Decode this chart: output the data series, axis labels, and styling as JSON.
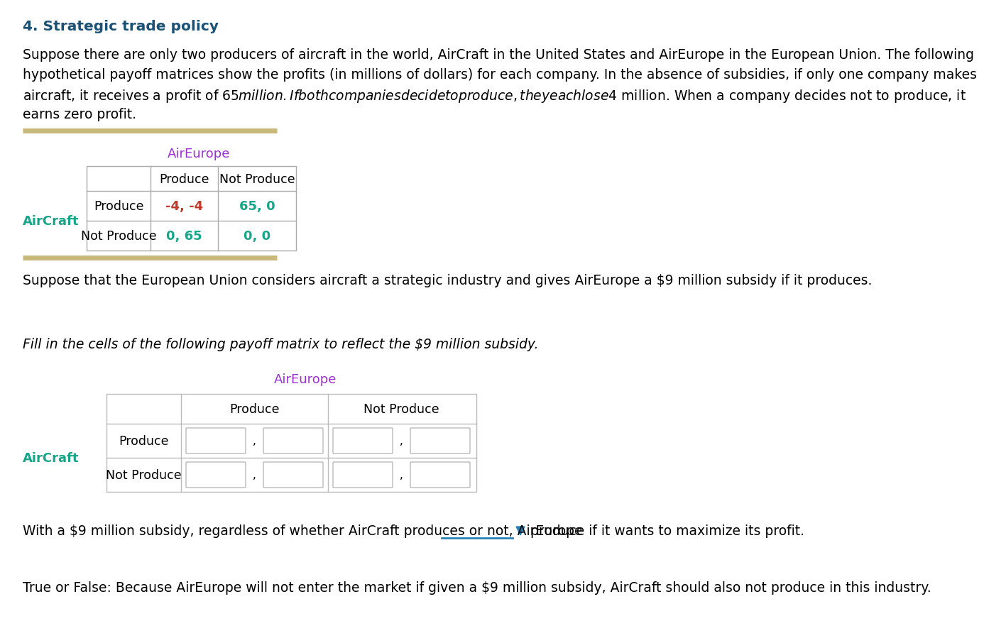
{
  "title": "4. Strategic trade policy",
  "title_color": "#1a5276",
  "para1_lines": [
    "Suppose there are only two producers of aircraft in the world, AirCraft in the United States and AirEurope in the European Union. The following",
    "hypothetical payoff matrices show the profits (in millions of dollars) for each company. In the absence of subsidies, if only one company makes",
    "aircraft, it receives a profit of $65 million. If both companies decide to produce, they each lose $4 million. When a company decides not to produce, it",
    "earns zero profit."
  ],
  "table1_aireurope_label": "AirEurope",
  "table1_aireurope_color": "#9b30d0",
  "table1_aircraft_label": "AirCraft",
  "table1_aircraft_color": "#17a589",
  "table1_col_headers": [
    "Produce",
    "Not Produce"
  ],
  "table1_row_headers": [
    "Produce",
    "Not Produce"
  ],
  "table1_cells": [
    [
      "-4, -4",
      "65, 0"
    ],
    [
      "0, 65",
      "0, 0"
    ]
  ],
  "table1_cell_colors": [
    [
      "#c0392b",
      "#17a589"
    ],
    [
      "#17a589",
      "#17a589"
    ]
  ],
  "separator_color": "#c8b87a",
  "para2": "Suppose that the European Union considers aircraft a strategic industry and gives AirEurope a $9 million subsidy if it produces.",
  "para3_italic": "Fill in the cells of the following payoff matrix to reflect the $9 million subsidy.",
  "table2_aireurope_label": "AirEurope",
  "table2_aireurope_color": "#9b30d0",
  "table2_aircraft_label": "AirCraft",
  "table2_aircraft_color": "#17a589",
  "table2_col_headers": [
    "Produce",
    "Not Produce"
  ],
  "table2_row_headers": [
    "Produce",
    "Not Produce"
  ],
  "para4_prefix": "With a $9 million subsidy, regardless of whether AirCraft produces or not, AirEurope",
  "para4_suffix": "produce if it wants to maximize its profit.",
  "para4_dropdown_color": "#2980b9",
  "para5": "True or False: Because AirEurope will not enter the market if given a $9 million subsidy, AirCraft should also not produce in this industry.",
  "background_color": "#ffffff",
  "text_color": "#000000",
  "font_size_body": 13.5,
  "font_size_title": 14.5,
  "font_size_table": 12.5
}
